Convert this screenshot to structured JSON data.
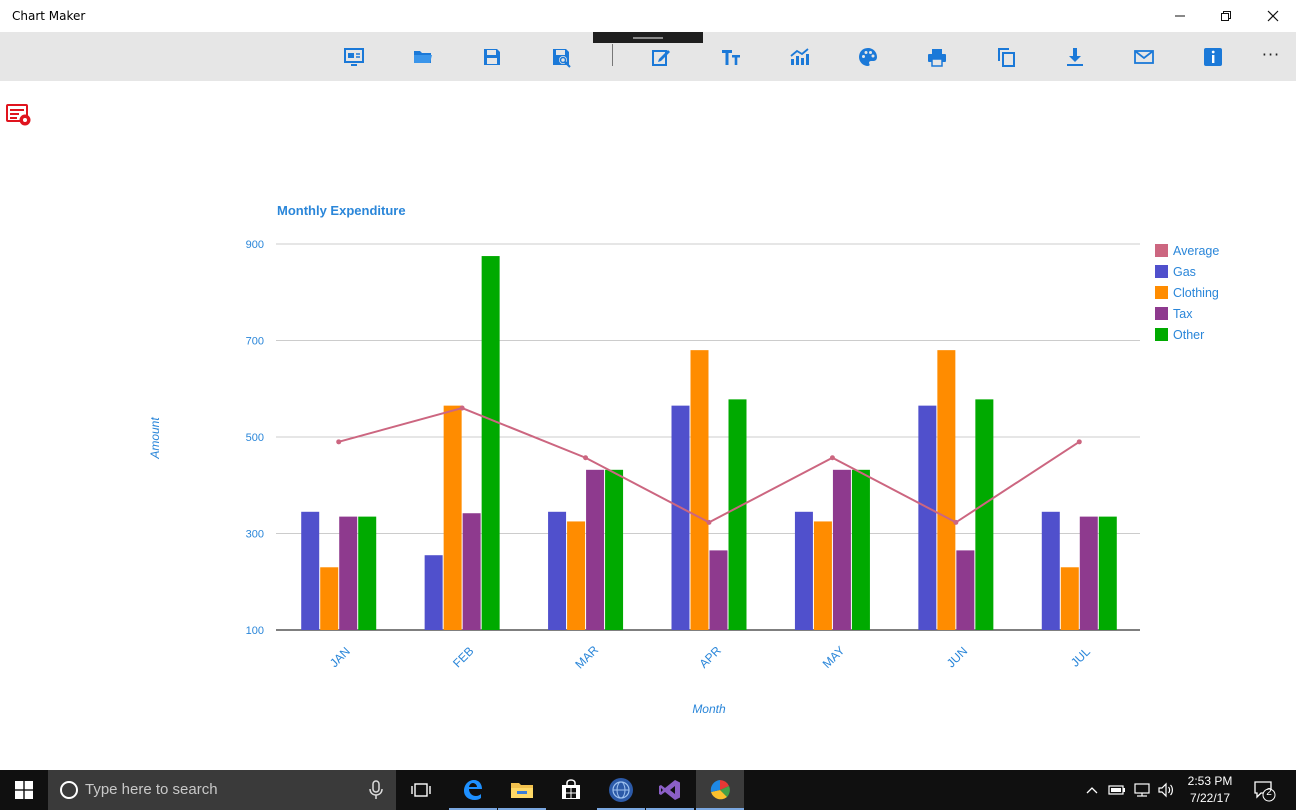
{
  "window": {
    "title": "Chart Maker"
  },
  "toolbar": {
    "items": [
      {
        "name": "presentation-icon"
      },
      {
        "name": "open-folder-icon"
      },
      {
        "name": "save-icon"
      },
      {
        "name": "save-as-icon"
      },
      {
        "name": "edit-icon"
      },
      {
        "name": "text-size-icon"
      },
      {
        "name": "chart-type-icon"
      },
      {
        "name": "palette-icon"
      },
      {
        "name": "print-icon"
      },
      {
        "name": "copy-icon"
      },
      {
        "name": "download-icon"
      },
      {
        "name": "mail-icon"
      },
      {
        "name": "info-icon"
      }
    ],
    "more_label": "···"
  },
  "colors": {
    "accent": "#1b79d8",
    "label": "#2a86d9"
  },
  "chart_data": {
    "type": "bar",
    "title": "Monthly Expenditure",
    "xlabel": "Month",
    "ylabel": "Amount",
    "ylim": [
      100,
      900
    ],
    "yticks": [
      100,
      300,
      500,
      700,
      900
    ],
    "categories": [
      "JAN",
      "FEB",
      "MAR",
      "APR",
      "MAY",
      "JUN",
      "JUL"
    ],
    "legend_position": "right",
    "grid": true,
    "series": [
      {
        "name": "Gas",
        "color": "#5050cc",
        "values": [
          345,
          255,
          345,
          565,
          345,
          565,
          345
        ]
      },
      {
        "name": "Clothing",
        "color": "#ff8c00",
        "values": [
          230,
          565,
          325,
          680,
          325,
          680,
          230
        ]
      },
      {
        "name": "Tax",
        "color": "#8e3a8e",
        "values": [
          335,
          342,
          432,
          265,
          432,
          265,
          335
        ]
      },
      {
        "name": "Other",
        "color": "#00aa00",
        "values": [
          335,
          875,
          432,
          578,
          432,
          578,
          335
        ]
      }
    ],
    "line_series": {
      "name": "Average",
      "color": "#cc6680",
      "values": [
        490,
        560,
        457,
        323,
        457,
        323,
        490
      ]
    },
    "legend_order": [
      "Average",
      "Gas",
      "Clothing",
      "Tax",
      "Other"
    ]
  },
  "taskbar": {
    "search_placeholder": "Type here to search",
    "apps": [
      {
        "name": "task-view-icon"
      },
      {
        "name": "edge-icon"
      },
      {
        "name": "file-explorer-icon"
      },
      {
        "name": "store-icon"
      },
      {
        "name": "globe-app-icon"
      },
      {
        "name": "visual-studio-icon"
      },
      {
        "name": "chart-maker-app-icon"
      }
    ],
    "time": "2:53 PM",
    "date": "7/22/17",
    "notification_count": "2"
  }
}
